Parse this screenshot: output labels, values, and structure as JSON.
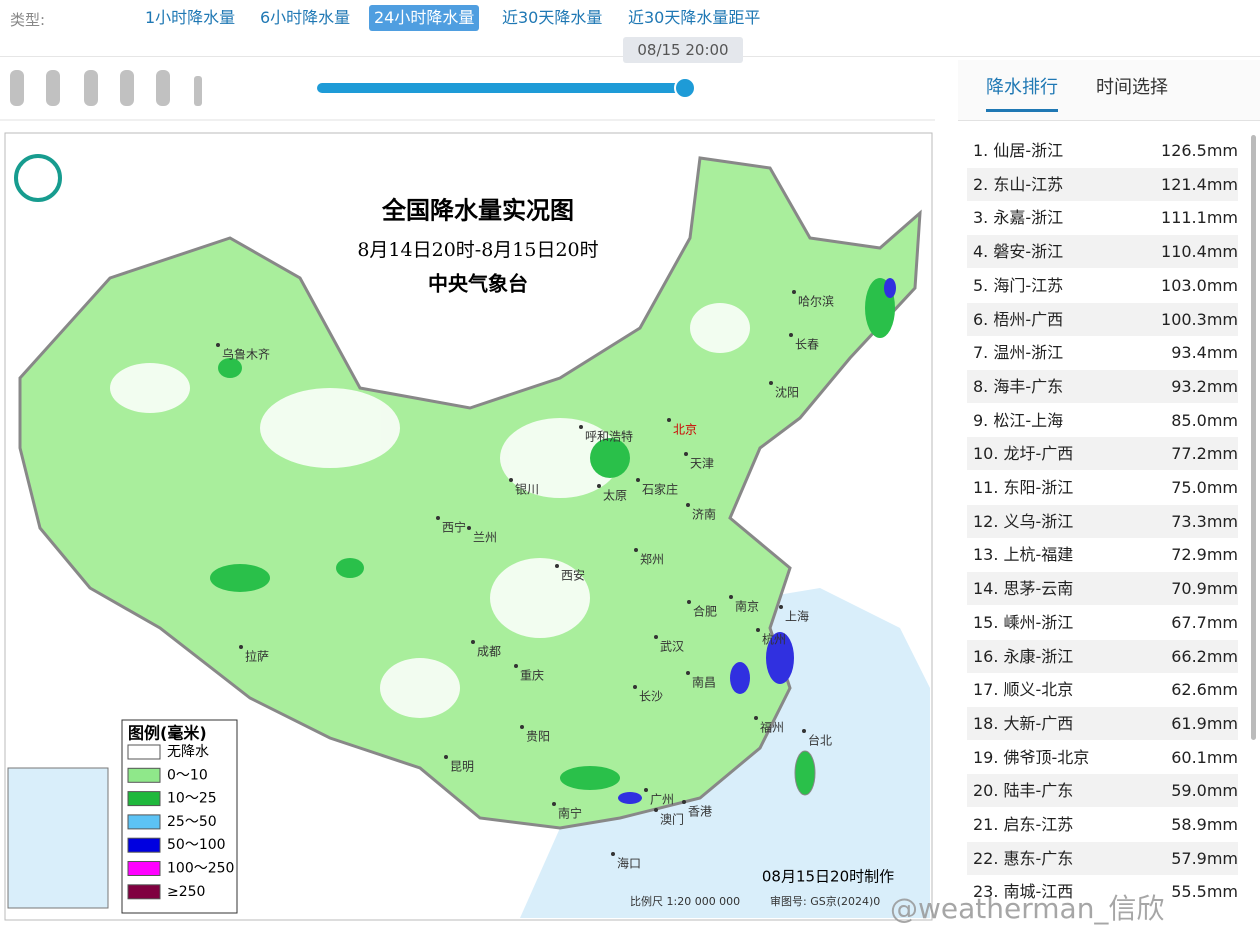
{
  "filter": {
    "label": "类型:",
    "tabs": [
      "1小时降水量",
      "6小时降水量",
      "24小时降水量",
      "近30天降水量",
      "近30天降水量距平"
    ],
    "active": 2
  },
  "slider": {
    "time": "08/15 20:00"
  },
  "panel": {
    "tabs": [
      "降水排行",
      "时间选择"
    ],
    "active": 0,
    "ranking": [
      [
        "1. 仙居-浙江",
        "126.5mm"
      ],
      [
        "2. 东山-江苏",
        "121.4mm"
      ],
      [
        "3. 永嘉-浙江",
        "111.1mm"
      ],
      [
        "4. 磐安-浙江",
        "110.4mm"
      ],
      [
        "5. 海门-江苏",
        "103.0mm"
      ],
      [
        "6. 梧州-广西",
        "100.3mm"
      ],
      [
        "7. 温州-浙江",
        "93.4mm"
      ],
      [
        "8. 海丰-广东",
        "93.2mm"
      ],
      [
        "9. 松江-上海",
        "85.0mm"
      ],
      [
        "10. 龙圩-广西",
        "77.2mm"
      ],
      [
        "11. 东阳-浙江",
        "75.0mm"
      ],
      [
        "12. 义乌-浙江",
        "73.3mm"
      ],
      [
        "13. 上杭-福建",
        "72.9mm"
      ],
      [
        "14. 思茅-云南",
        "70.9mm"
      ],
      [
        "15. 嵊州-浙江",
        "67.7mm"
      ],
      [
        "16. 永康-浙江",
        "66.2mm"
      ],
      [
        "17. 顺义-北京",
        "62.6mm"
      ],
      [
        "18. 大新-广西",
        "61.9mm"
      ],
      [
        "19. 佛爷顶-北京",
        "60.1mm"
      ],
      [
        "20. 陆丰-广东",
        "59.0mm"
      ],
      [
        "21. 启东-江苏",
        "58.9mm"
      ],
      [
        "22. 惠东-广东",
        "57.9mm"
      ],
      [
        "23. 南城-江西",
        "55.5mm"
      ]
    ]
  },
  "map": {
    "title": "全国降水量实况图",
    "period": "8月14日20时-8月15日20时",
    "issuer": "中央气象台",
    "legend": {
      "title": "图例(毫米)",
      "items": [
        {
          "label": "无降水",
          "color": "#ffffff"
        },
        {
          "label": "0～10",
          "color": "#8fe88a"
        },
        {
          "label": "10～25",
          "color": "#1fb83c"
        },
        {
          "label": "25～50",
          "color": "#5cc3f5"
        },
        {
          "label": "50～100",
          "color": "#0000e0"
        },
        {
          "label": "100～250",
          "color": "#ff00ff"
        },
        {
          "label": "≥250",
          "color": "#800040"
        }
      ]
    },
    "cities": [
      "乌鲁木齐",
      "哈尔滨",
      "长春",
      "沈阳",
      "呼和浩特",
      "北京",
      "天津",
      "银川",
      "太原",
      "石家庄",
      "济南",
      "西宁",
      "兰州",
      "郑州",
      "西安",
      "南京",
      "合肥",
      "上海",
      "拉萨",
      "成都",
      "武汉",
      "杭州",
      "重庆",
      "南昌",
      "长沙",
      "福州",
      "贵阳",
      "台北",
      "昆明",
      "广州",
      "南宁",
      "香港",
      "澳门",
      "海口"
    ],
    "made": "08月15日20时制作",
    "scale": "比例尺 1:20 000 000",
    "approval": "审图号: GS京(2024)0"
  },
  "watermark": "@weatherman_信欣"
}
